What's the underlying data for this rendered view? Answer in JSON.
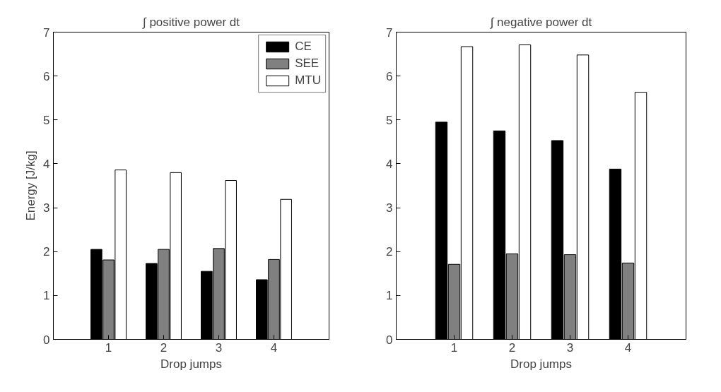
{
  "chart_data": [
    {
      "type": "bar",
      "title": "∫ positive power dt",
      "xlabel": "Drop jumps",
      "ylabel": "Energy [J/kg]",
      "x": [
        1,
        2,
        3,
        4
      ],
      "xlim": [
        0,
        5
      ],
      "xticks": [
        1,
        2,
        3,
        4
      ],
      "ylim": [
        0,
        7
      ],
      "yticks": [
        0,
        1,
        2,
        3,
        4,
        5,
        6,
        7
      ],
      "legend": "top right",
      "series": [
        {
          "name": "CE",
          "color": "#000000",
          "values": [
            2.05,
            1.73,
            1.55,
            1.36
          ]
        },
        {
          "name": "SEE",
          "color": "#808080",
          "values": [
            1.81,
            2.05,
            2.07,
            1.82
          ]
        },
        {
          "name": "MTU",
          "color": "#ffffff",
          "values": [
            3.86,
            3.8,
            3.62,
            3.19
          ]
        }
      ]
    },
    {
      "type": "bar",
      "title": "∫ negative power dt",
      "xlabel": "Drop jumps",
      "x": [
        1,
        2,
        3,
        4
      ],
      "xlim": [
        0,
        5
      ],
      "xticks": [
        1,
        2,
        3,
        4
      ],
      "ylim": [
        0,
        7
      ],
      "yticks": [
        0,
        1,
        2,
        3,
        4,
        5,
        6,
        7
      ],
      "series": [
        {
          "color": "#000000",
          "values": [
            4.95,
            4.75,
            4.53,
            3.88
          ]
        },
        {
          "color": "#808080",
          "values": [
            1.71,
            1.95,
            1.93,
            1.74
          ]
        },
        {
          "color": "#ffffff",
          "values": [
            6.67,
            6.71,
            6.48,
            5.63
          ]
        }
      ]
    }
  ]
}
